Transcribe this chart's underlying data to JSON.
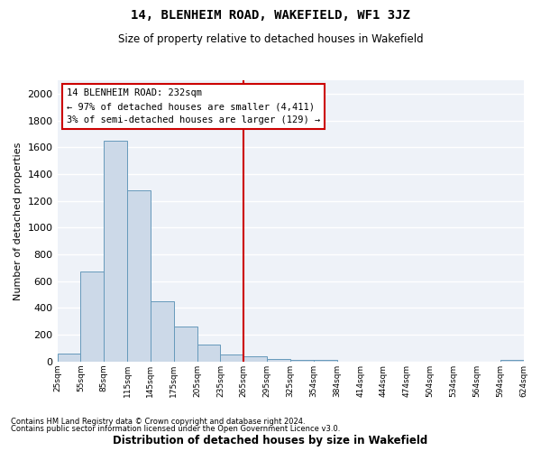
{
  "title": "14, BLENHEIM ROAD, WAKEFIELD, WF1 3JZ",
  "subtitle": "Size of property relative to detached houses in Wakefield",
  "xlabel": "Distribution of detached houses by size in Wakefield",
  "ylabel": "Number of detached properties",
  "bar_values": [
    60,
    670,
    1650,
    1280,
    450,
    260,
    130,
    50,
    40,
    20,
    10,
    15,
    0,
    0,
    0,
    0,
    0,
    0,
    0,
    10
  ],
  "tick_labels": [
    "25sqm",
    "55sqm",
    "85sqm",
    "115sqm",
    "145sqm",
    "175sqm",
    "205sqm",
    "235sqm",
    "265sqm",
    "295sqm",
    "325sqm",
    "354sqm",
    "384sqm",
    "414sqm",
    "444sqm",
    "474sqm",
    "504sqm",
    "534sqm",
    "564sqm",
    "594sqm",
    "624sqm"
  ],
  "bar_color": "#ccd9e8",
  "bar_edge_color": "#6699bb",
  "background_color": "#eef2f8",
  "grid_color": "#ffffff",
  "vline_color": "#cc0000",
  "annotation_text": "14 BLENHEIM ROAD: 232sqm\n← 97% of detached houses are smaller (4,411)\n3% of semi-detached houses are larger (129) →",
  "annotation_box_color": "#ffffff",
  "annotation_box_edge": "#cc0000",
  "ylim": [
    0,
    2100
  ],
  "yticks": [
    0,
    200,
    400,
    600,
    800,
    1000,
    1200,
    1400,
    1600,
    1800,
    2000
  ],
  "footnote1": "Contains HM Land Registry data © Crown copyright and database right 2024.",
  "footnote2": "Contains public sector information licensed under the Open Government Licence v3.0."
}
